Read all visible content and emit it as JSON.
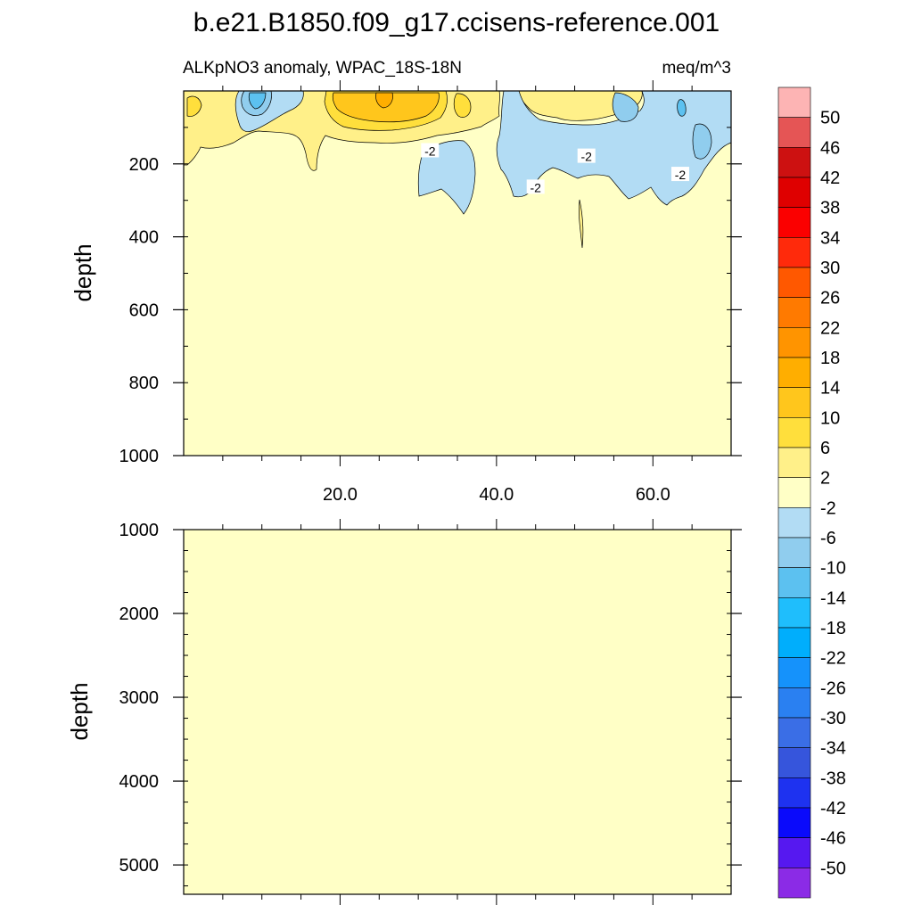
{
  "chart_data": {
    "type": "contour",
    "title": "b.e21.B1850.f09_g17.ccisens-reference.001",
    "variable_label": "ALKpNO3 anomaly, WPAC_18S-18N",
    "units": "meq/m^3",
    "top_panel": {
      "ylabel": "depth",
      "ylim": [
        1000,
        0
      ],
      "y_ticks": [
        200,
        400,
        600,
        800,
        1000
      ],
      "y_tick_labels": [
        "200",
        "400",
        "600",
        "800",
        "1000"
      ],
      "xlim": [
        0,
        70
      ],
      "x_ticks": [
        20,
        40,
        60
      ],
      "x_tick_labels": [
        "20.0",
        "40.0",
        "60.0"
      ],
      "contour_labels": [
        {
          "text": "-2",
          "x": 31.5,
          "depth": 165
        },
        {
          "text": "-2",
          "x": 45,
          "depth": 265
        },
        {
          "text": "-2",
          "x": 51.5,
          "depth": 180
        },
        {
          "text": "-2",
          "x": 63.5,
          "depth": 230
        }
      ]
    },
    "bottom_panel": {
      "ylabel": "depth",
      "ylim": [
        5350,
        1000
      ],
      "y_ticks": [
        1000,
        2000,
        3000,
        4000,
        5000
      ],
      "y_tick_labels": [
        "1000",
        "2000",
        "3000",
        "4000",
        "5000"
      ]
    },
    "colorbar": {
      "levels": [
        "50",
        "46",
        "42",
        "38",
        "34",
        "30",
        "26",
        "22",
        "18",
        "14",
        "10",
        "6",
        "2",
        "-2",
        "-6",
        "-10",
        "-14",
        "-18",
        "-22",
        "-26",
        "-30",
        "-34",
        "-38",
        "-42",
        "-46",
        "-50"
      ],
      "colors": [
        "#FDB4B4",
        "#E55555",
        "#CD1111",
        "#DF0000",
        "#FB0000",
        "#FF2A0B",
        "#FF5800",
        "#FF7A00",
        "#FF9400",
        "#FFAE00",
        "#FFC61C",
        "#FFDF3C",
        "#FFF089",
        "#FFFFC6",
        "#B2DCF4",
        "#90CDEE",
        "#5CC1F0",
        "#1FBEFC",
        "#00AEFC",
        "#1592FB",
        "#2A80F1",
        "#3A6EE6",
        "#3655DC",
        "#1E32F0",
        "#0A0AFB",
        "#5618F0",
        "#8B2BE6"
      ]
    }
  }
}
